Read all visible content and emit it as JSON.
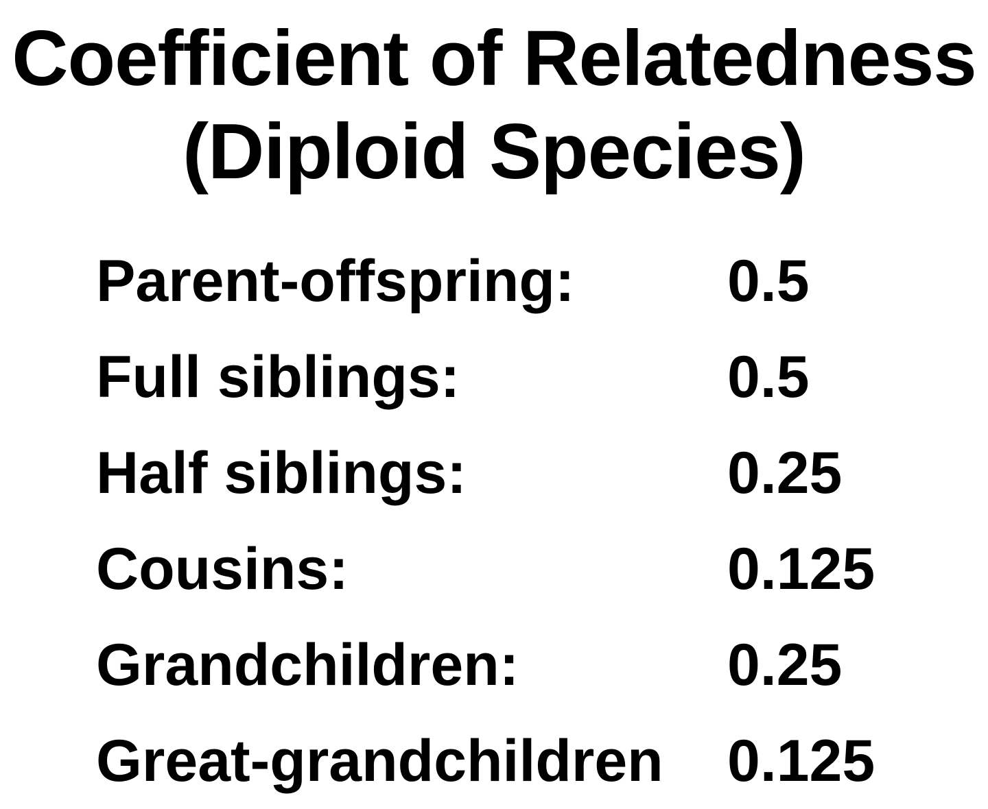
{
  "title": {
    "line1": "Coefficient of Relatedness",
    "line2": "(Diploid Species)"
  },
  "rows": [
    {
      "label": "Parent-offspring:",
      "value": "0.5"
    },
    {
      "label": "Full siblings:",
      "value": "0.5"
    },
    {
      "label": "Half siblings:",
      "value": "0.25"
    },
    {
      "label": "Cousins:",
      "value": "0.125"
    },
    {
      "label": "Grandchildren:",
      "value": "0.25"
    },
    {
      "label": "Great-grandchildren",
      "value": "0.125"
    }
  ]
}
